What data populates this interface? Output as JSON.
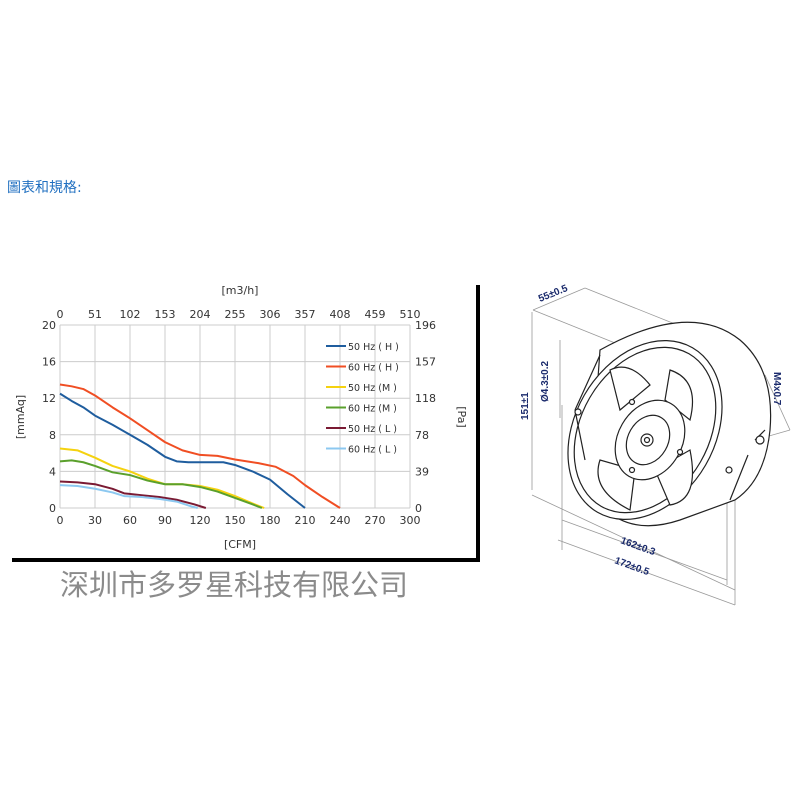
{
  "heading": "圖表和規格:",
  "watermark": "深圳市多罗星科技有限公司",
  "chart_data": {
    "type": "line",
    "xlabel": "[CFM]",
    "x2label": "[m3/h]",
    "ylabel": "[mmAq]",
    "y2label": "[Pa]",
    "xlim": [
      0,
      300
    ],
    "ylim": [
      0,
      20
    ],
    "xticks": [
      0,
      30,
      60,
      90,
      120,
      150,
      180,
      210,
      240,
      270,
      300
    ],
    "x2ticks": [
      0,
      51,
      102,
      153,
      204,
      255,
      306,
      357,
      408,
      459,
      510
    ],
    "yticks": [
      0,
      4,
      8,
      12,
      16,
      20
    ],
    "y2ticks": [
      0,
      39,
      78,
      118,
      157,
      196
    ],
    "grid": true,
    "legend_position": "top-right",
    "series": [
      {
        "name": "50 Hz ( H )",
        "color": "#1f5d9e",
        "points": [
          [
            0,
            12.5
          ],
          [
            10,
            11.7
          ],
          [
            20,
            11
          ],
          [
            30,
            10.1
          ],
          [
            45,
            9.1
          ],
          [
            60,
            8
          ],
          [
            75,
            6.9
          ],
          [
            90,
            5.6
          ],
          [
            100,
            5.1
          ],
          [
            110,
            5
          ],
          [
            140,
            5
          ],
          [
            150,
            4.7
          ],
          [
            165,
            4
          ],
          [
            180,
            3.1
          ],
          [
            195,
            1.5
          ],
          [
            210,
            0
          ]
        ]
      },
      {
        "name": "60 Hz ( H )",
        "color": "#f04e23",
        "points": [
          [
            0,
            13.5
          ],
          [
            10,
            13.3
          ],
          [
            20,
            13
          ],
          [
            30,
            12.3
          ],
          [
            45,
            11
          ],
          [
            60,
            9.8
          ],
          [
            75,
            8.5
          ],
          [
            90,
            7.2
          ],
          [
            105,
            6.3
          ],
          [
            120,
            5.8
          ],
          [
            135,
            5.7
          ],
          [
            150,
            5.3
          ],
          [
            170,
            4.9
          ],
          [
            185,
            4.5
          ],
          [
            200,
            3.5
          ],
          [
            210,
            2.5
          ],
          [
            225,
            1.2
          ],
          [
            240,
            0
          ]
        ]
      },
      {
        "name": "50 Hz (M )",
        "color": "#f5d20f",
        "points": [
          [
            0,
            6.5
          ],
          [
            15,
            6.3
          ],
          [
            30,
            5.5
          ],
          [
            45,
            4.6
          ],
          [
            60,
            4
          ],
          [
            75,
            3.2
          ],
          [
            90,
            2.6
          ],
          [
            105,
            2.6
          ],
          [
            120,
            2.4
          ],
          [
            135,
            2
          ],
          [
            150,
            1.3
          ],
          [
            165,
            0.5
          ],
          [
            175,
            0
          ]
        ]
      },
      {
        "name": "60 Hz (M )",
        "color": "#5aa02c",
        "points": [
          [
            0,
            5.1
          ],
          [
            10,
            5.2
          ],
          [
            20,
            5
          ],
          [
            30,
            4.6
          ],
          [
            45,
            3.9
          ],
          [
            60,
            3.6
          ],
          [
            75,
            3
          ],
          [
            90,
            2.6
          ],
          [
            105,
            2.6
          ],
          [
            120,
            2.3
          ],
          [
            135,
            1.8
          ],
          [
            150,
            1.1
          ],
          [
            165,
            0.4
          ],
          [
            173,
            0
          ]
        ]
      },
      {
        "name": "50 Hz ( L )",
        "color": "#7a1a33",
        "points": [
          [
            0,
            2.9
          ],
          [
            15,
            2.8
          ],
          [
            30,
            2.6
          ],
          [
            45,
            2.1
          ],
          [
            55,
            1.6
          ],
          [
            70,
            1.4
          ],
          [
            85,
            1.2
          ],
          [
            100,
            0.9
          ],
          [
            115,
            0.4
          ],
          [
            125,
            0
          ]
        ]
      },
      {
        "name": "60 Hz ( L )",
        "color": "#8cc8f0",
        "points": [
          [
            0,
            2.5
          ],
          [
            15,
            2.4
          ],
          [
            30,
            2.1
          ],
          [
            45,
            1.7
          ],
          [
            55,
            1.3
          ],
          [
            70,
            1.2
          ],
          [
            85,
            1
          ],
          [
            100,
            0.7
          ],
          [
            112,
            0.2
          ],
          [
            118,
            0
          ]
        ]
      }
    ]
  },
  "dimensions": {
    "depth": "55±0.5",
    "height": "151±1",
    "hole": "Ø4.3±0.2",
    "thread": "M4x0.7",
    "hole_pitch": "162±0.3",
    "width": "172±0.5"
  }
}
